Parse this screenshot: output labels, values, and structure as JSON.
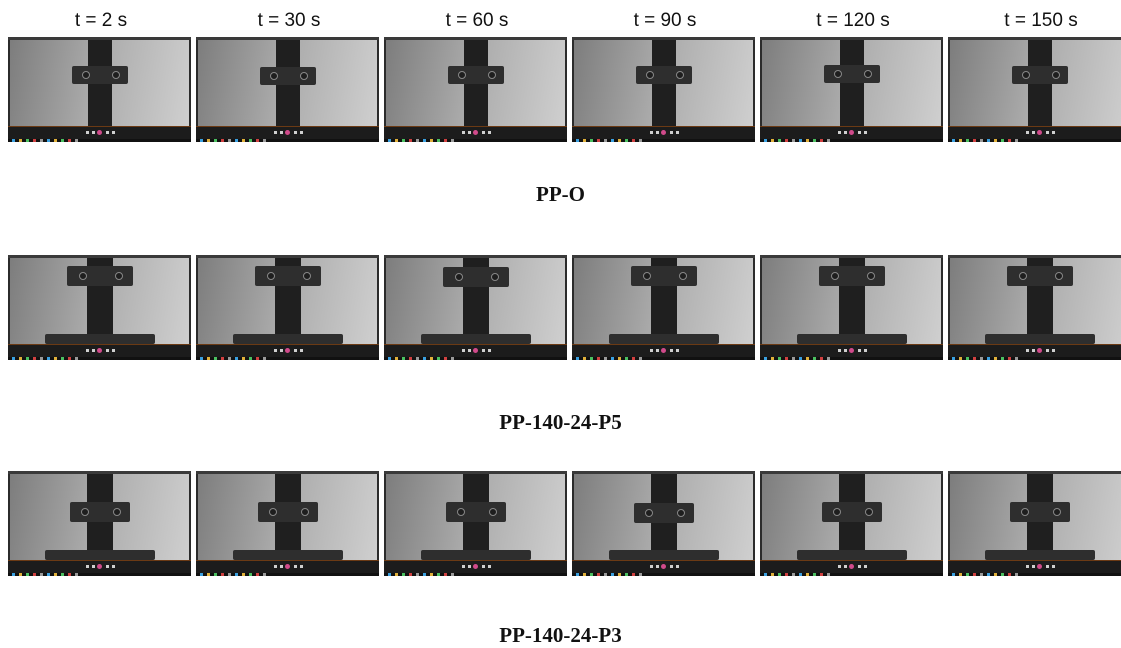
{
  "time_labels": [
    "t = 2 s",
    "t = 30 s",
    "t = 60 s",
    "t = 90 s",
    "t = 120 s",
    "t = 150 s"
  ],
  "rows": [
    {
      "title": "PP-O"
    },
    {
      "title": "PP-140-24-P5"
    },
    {
      "title": "PP-140-24-P3"
    }
  ],
  "colors": {
    "wall_light": "#cfcfcf",
    "wall_dark": "#7d7d7d",
    "specimen": "#1f1f1f",
    "clamp": "#2e2e2e",
    "player_bar": "#1c1c1c",
    "progress": "#6b3a14",
    "play_button": "#d14a8b"
  },
  "icons": [
    "play-button-icon",
    "previous-icon",
    "next-icon",
    "taskbar-icon"
  ]
}
